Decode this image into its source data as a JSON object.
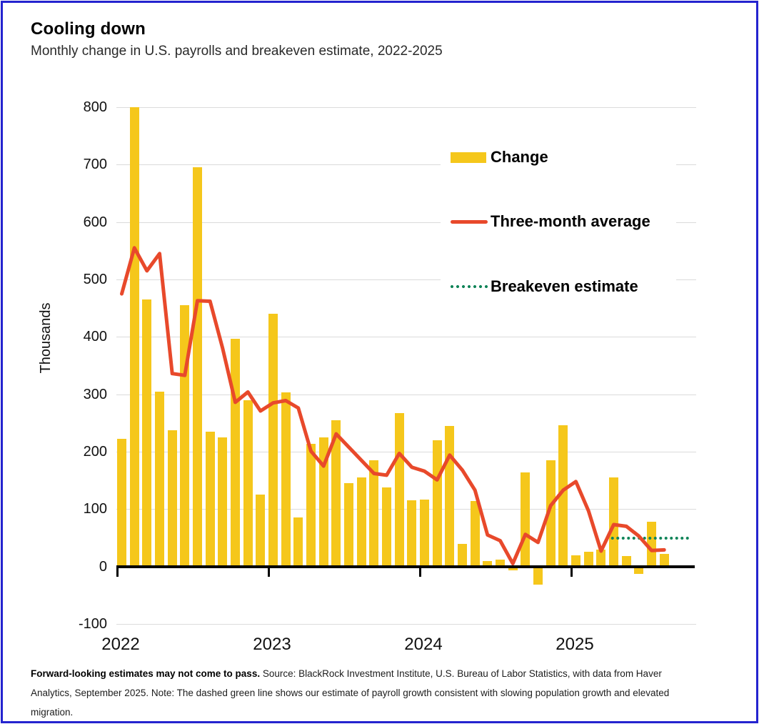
{
  "title": "Cooling down",
  "subtitle": "Monthly change in U.S. payrolls and breakeven estimate, 2022-2025",
  "y_axis": {
    "label": "Thousands",
    "ticks": [
      800,
      700,
      600,
      500,
      400,
      300,
      200,
      100,
      0,
      -100
    ]
  },
  "x_axis": {
    "years": [
      "2022",
      "2023",
      "2024",
      "2025"
    ]
  },
  "legend": {
    "change_label": "Change",
    "three_month_label": "Three-month average",
    "breakeven_label": "Breakeven estimate"
  },
  "colors": {
    "bar_yellow": "#f5c71b",
    "line_red": "#e8492b",
    "breakeven_green": "#12855a",
    "border_blue": "#2423cf",
    "gridline_gray": "#dbdbdb"
  },
  "footnote": {
    "bold": "Forward-looking estimates may not come to pass.",
    "text": " Source: BlackRock Investment Institute, U.S. Bureau of Labor Statistics, with data from Haver Analytics, September 2025. Note: The dashed green line shows our estimate of payroll growth consistent with slowing population growth and elevated migration."
  },
  "chart_data": {
    "type": "bar",
    "unit": "thousands",
    "ylim": [
      -100,
      800
    ],
    "months": [
      "2022-01",
      "2022-02",
      "2022-03",
      "2022-04",
      "2022-05",
      "2022-06",
      "2022-07",
      "2022-08",
      "2022-09",
      "2022-10",
      "2022-11",
      "2022-12",
      "2023-01",
      "2023-02",
      "2023-03",
      "2023-04",
      "2023-05",
      "2023-06",
      "2023-07",
      "2023-08",
      "2023-09",
      "2023-10",
      "2023-11",
      "2023-12",
      "2024-01",
      "2024-02",
      "2024-03",
      "2024-04",
      "2024-05",
      "2024-06",
      "2024-07",
      "2024-08",
      "2024-09",
      "2024-10",
      "2024-11",
      "2024-12",
      "2025-01",
      "2025-02",
      "2025-03",
      "2025-04",
      "2025-05",
      "2025-06",
      "2025-07",
      "2025-08"
    ],
    "series": [
      {
        "name": "Change",
        "type": "bar",
        "values": [
          222,
          800,
          465,
          305,
          238,
          455,
          695,
          235,
          225,
          397,
          290,
          125,
          440,
          303,
          85,
          214,
          225,
          255,
          145,
          155,
          185,
          138,
          267,
          115,
          117,
          220,
          245,
          40,
          114,
          10,
          12,
          -7,
          164,
          -31,
          185,
          246,
          20,
          26,
          30,
          155,
          18,
          -13,
          78,
          22
        ]
      },
      {
        "name": "Three-month average",
        "type": "line",
        "values": [
          475,
          555,
          515,
          545,
          336,
          333,
          463,
          462,
          380,
          286,
          304,
          271,
          285,
          289,
          276,
          201,
          175,
          231,
          208,
          185,
          162,
          159,
          197,
          173,
          166,
          151,
          194,
          168,
          133,
          55,
          45,
          5,
          56,
          42,
          106,
          133,
          148,
          97,
          27,
          73,
          70,
          53,
          28,
          29
        ]
      },
      {
        "name": "Breakeven estimate",
        "type": "dotted-line",
        "value": 50,
        "start_month": "2025-04",
        "note": "horizontal dotted line extending past the last bar"
      }
    ]
  }
}
